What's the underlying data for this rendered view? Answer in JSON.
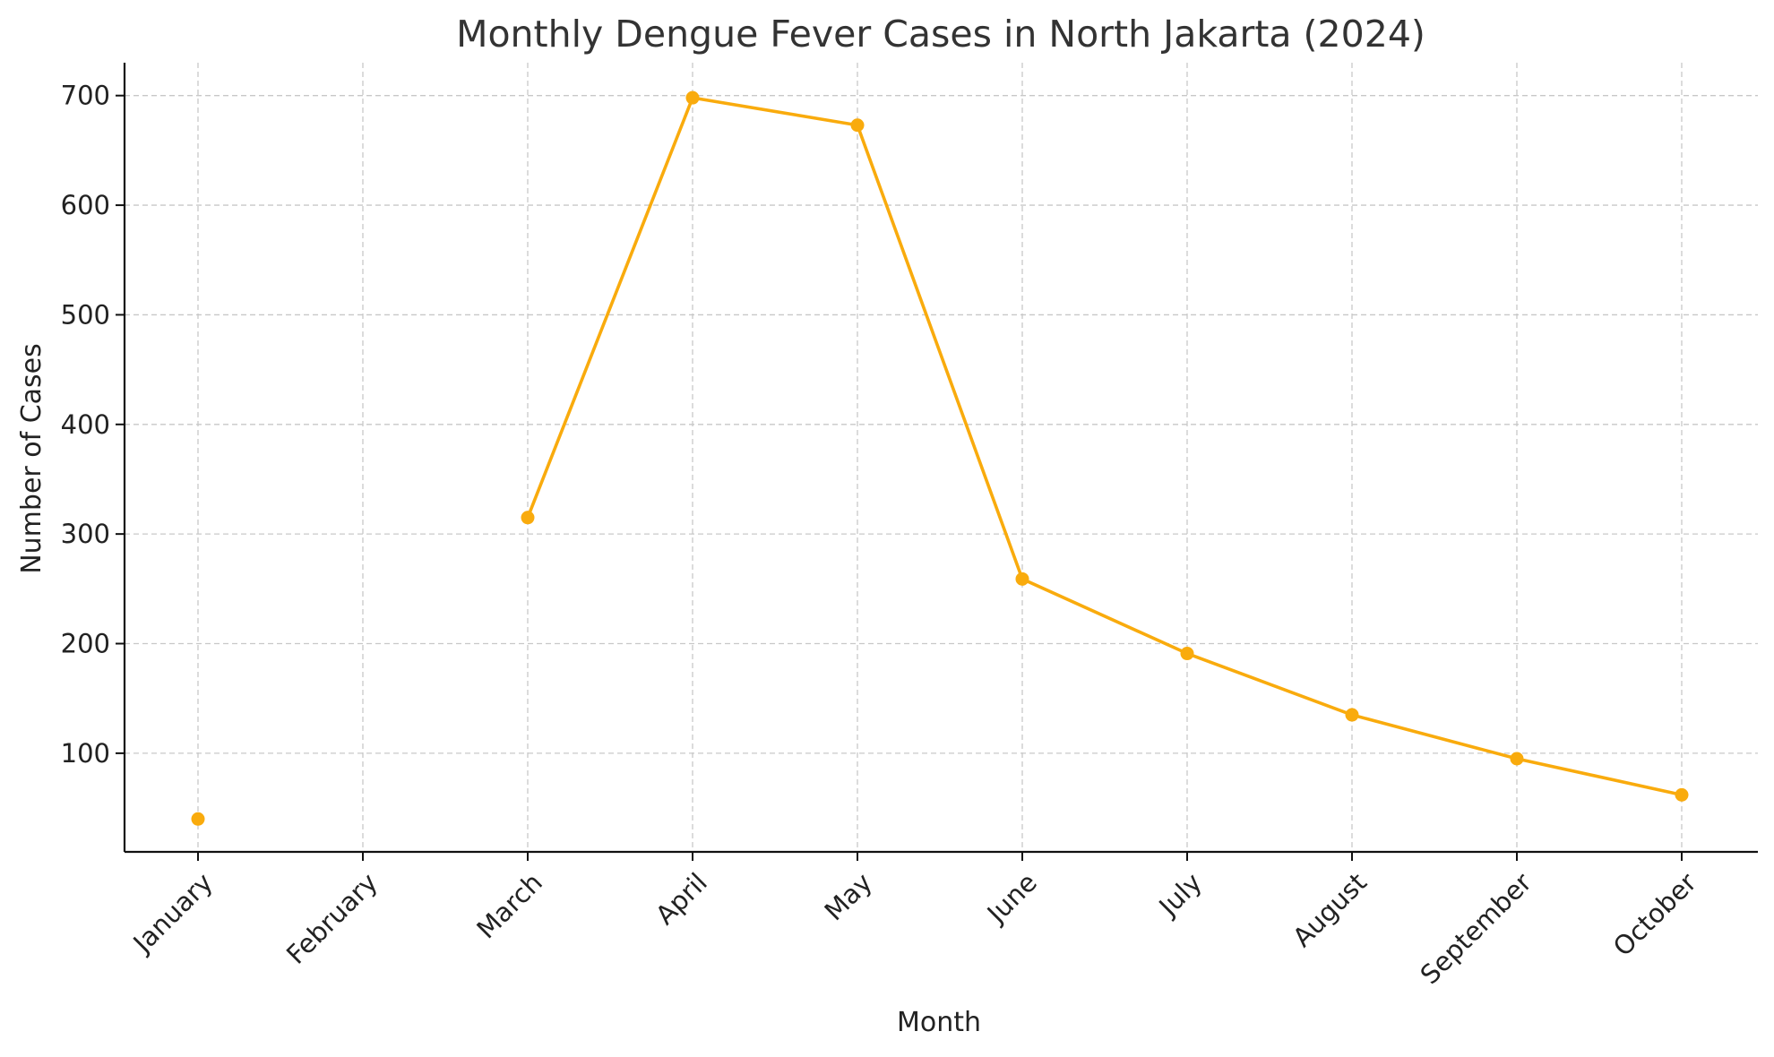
{
  "chart_data": {
    "type": "line",
    "title": "Monthly Dengue Fever Cases in North Jakarta (2024)",
    "xlabel": "Month",
    "ylabel": "Number of Cases",
    "categories": [
      "January",
      "February",
      "March",
      "April",
      "May",
      "June",
      "July",
      "August",
      "September",
      "October"
    ],
    "series": [
      {
        "values": [
          40,
          null,
          315,
          698,
          673,
          259,
          191,
          135,
          95,
          62
        ],
        "color": "#f9ab0d"
      }
    ],
    "ylim": [
      10,
      730
    ],
    "yticks": [
      100,
      200,
      300,
      400,
      500,
      600,
      700
    ],
    "grid": true,
    "gridStyle": "dashed",
    "markers": "circle"
  }
}
